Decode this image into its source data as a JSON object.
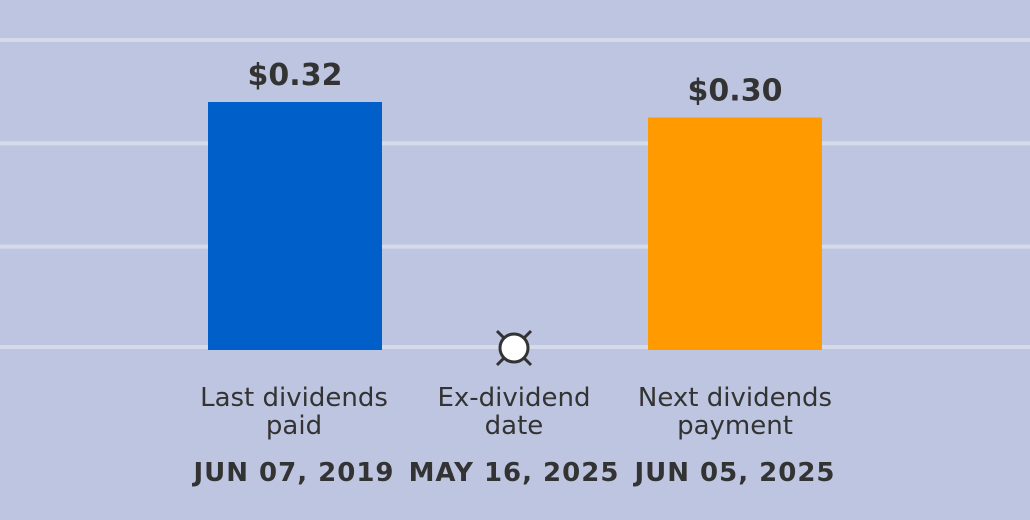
{
  "chart_data": {
    "type": "bar",
    "categories": [
      {
        "line1": "Last dividends",
        "line2": "paid",
        "date": "JUN 07, 2019"
      },
      {
        "line1": "Ex-dividend",
        "line2": "date",
        "date": "MAY 16, 2025"
      },
      {
        "line1": "Next dividends",
        "line2": "payment",
        "date": "JUN 05, 2025"
      }
    ],
    "values": [
      0.32,
      null,
      0.3
    ],
    "value_labels": [
      "$0.32",
      "",
      "$0.30"
    ],
    "bar_colors": [
      "#005fc9",
      null,
      "#ff9a00"
    ],
    "ylim": [
      0,
      0.4
    ],
    "grid": true,
    "marker": {
      "category_index": 1,
      "icon": "ex-dividend-marker-icon"
    },
    "colors": {
      "background": "#bec5e0",
      "grid": "#d6dbea",
      "text": "#333333"
    }
  }
}
